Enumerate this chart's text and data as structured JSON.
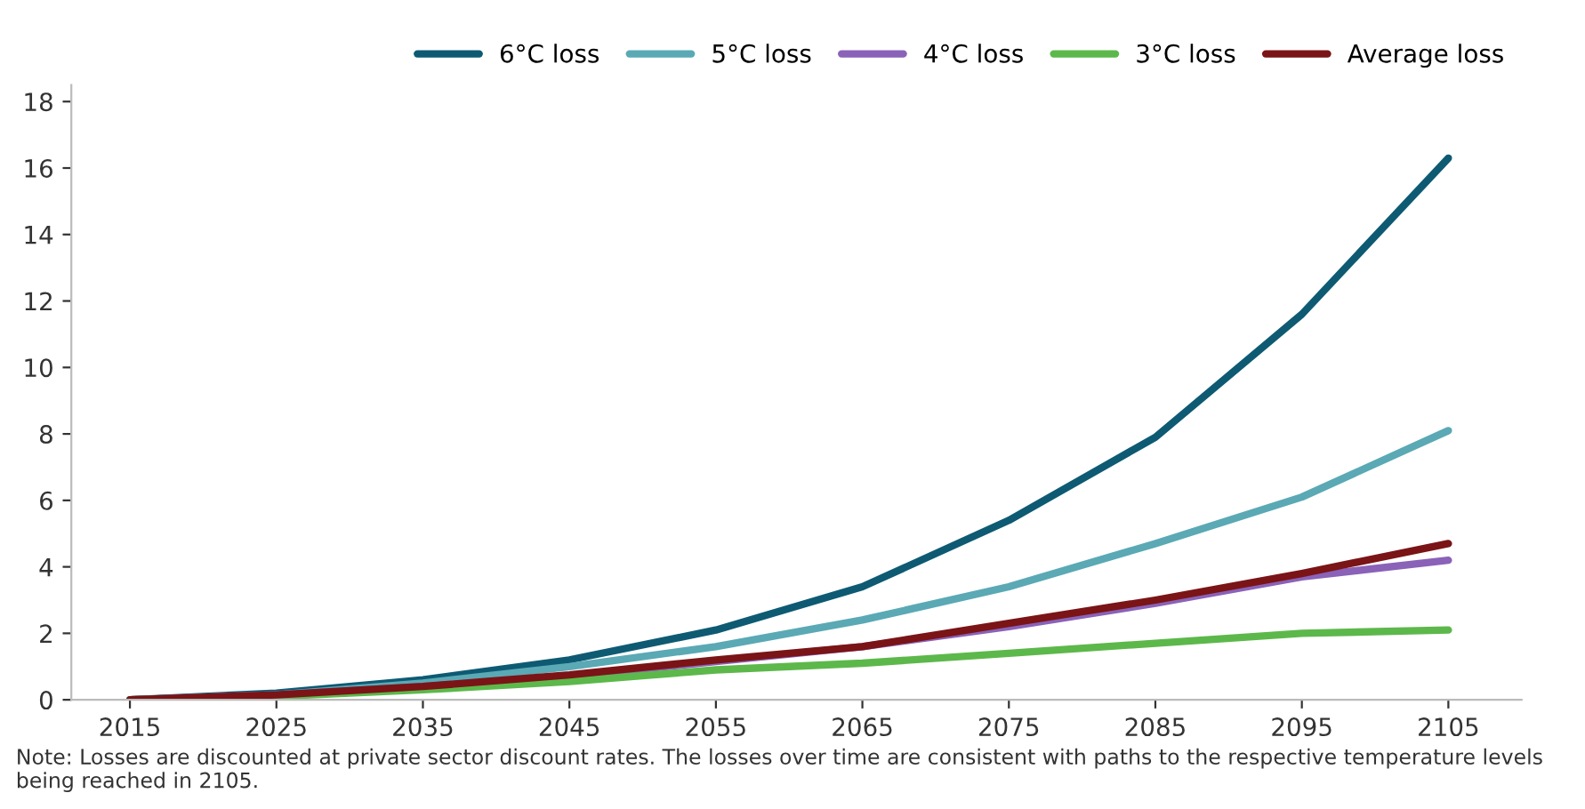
{
  "chart_data": {
    "type": "line",
    "x": [
      2015,
      2025,
      2035,
      2045,
      2055,
      2065,
      2075,
      2085,
      2095,
      2105
    ],
    "series": [
      {
        "name": "6°C loss",
        "color": "#0e5a73",
        "values": [
          0,
          0.2,
          0.6,
          1.2,
          2.1,
          3.4,
          5.4,
          7.9,
          11.6,
          16.3
        ]
      },
      {
        "name": "5°C loss",
        "color": "#5aa9b5",
        "values": [
          0,
          0.15,
          0.5,
          1.0,
          1.6,
          2.4,
          3.4,
          4.7,
          6.1,
          8.1
        ]
      },
      {
        "name": "4°C loss",
        "color": "#8a62b8",
        "values": [
          0,
          0.15,
          0.4,
          0.7,
          1.15,
          1.6,
          2.2,
          2.9,
          3.7,
          4.2
        ]
      },
      {
        "name": "3°C loss",
        "color": "#5cb84a",
        "values": [
          0,
          0.1,
          0.3,
          0.55,
          0.9,
          1.1,
          1.4,
          1.7,
          2.0,
          2.1
        ]
      },
      {
        "name": "Average loss",
        "color": "#7a1416",
        "values": [
          0,
          0.15,
          0.4,
          0.75,
          1.2,
          1.6,
          2.3,
          3.0,
          3.8,
          4.7
        ]
      }
    ],
    "xlim": [
      2011,
      2110
    ],
    "xticks": [
      2015,
      2025,
      2035,
      2045,
      2055,
      2065,
      2075,
      2085,
      2095,
      2105
    ],
    "ylim": [
      0,
      18.5
    ],
    "yticks": [
      0,
      2,
      4,
      6,
      8,
      10,
      12,
      14,
      16,
      18
    ],
    "grid": false,
    "legend": "top right",
    "marker": "none",
    "line_style": "solid",
    "annotations": [
      "Note: Losses are discounted at private sector discount rates. The losses over time are consistent with paths to the respective temperature levels being reached in 2105."
    ]
  }
}
